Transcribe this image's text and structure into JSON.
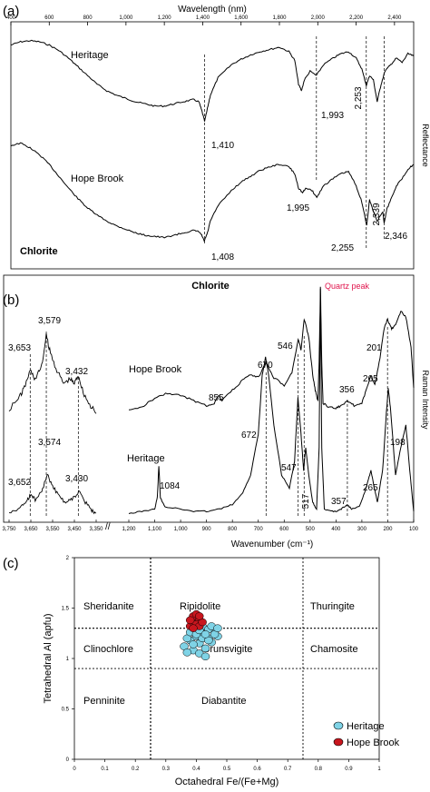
{
  "panel_a": {
    "label": "(a)",
    "title": "Wavelength (nm)",
    "x_ticks": [
      "400",
      "600",
      "800",
      "1,000",
      "1,200",
      "1,400",
      "1,600",
      "1,800",
      "2,000",
      "2,200",
      "2,400"
    ],
    "y_label": "Reflectance",
    "series_labels": {
      "heritage": "Heritage",
      "hope": "Hope Brook"
    },
    "mineral": "Chlorite",
    "annotations": [
      "1,410",
      "1,993",
      "2,253",
      "1,408",
      "1,995",
      "2,339",
      "2,255",
      "2,346"
    ]
  },
  "panel_b": {
    "label": "(b)",
    "title": "Chlorite",
    "x_label": "Wavenumber (cm⁻¹)",
    "y_label": "Raman Intensity",
    "quartz": "Quartz peak",
    "left_ticks": [
      "3,750",
      "3,650",
      "3,550",
      "3,450",
      "3,350"
    ],
    "main_ticks": [
      "1,200",
      "1,100",
      "1,000",
      "900",
      "800",
      "700",
      "600",
      "500",
      "400",
      "300",
      "200",
      "100"
    ],
    "series_labels": {
      "hope": "Hope Brook",
      "heritage": "Heritage"
    },
    "left_annotations": [
      "3,579",
      "3,653",
      "3,432",
      "3,574",
      "3,652",
      "3,430"
    ],
    "hope_annotations": [
      "523",
      "546",
      "670",
      "855",
      "356",
      "265",
      "201"
    ],
    "heritage_annotations": [
      "672",
      "547",
      "517",
      "1084",
      "357",
      "265",
      "198"
    ]
  },
  "panel_c": {
    "label": "(c)",
    "x_label": "Octahedral Fe/(Fe+Mg)",
    "y_label": "Tetrahedral Al (apfu)",
    "x_ticks": [
      "0",
      "0.1",
      "0.2",
      "0.3",
      "0.4",
      "0.5",
      "0.6",
      "0.7",
      "0.8",
      "0.9",
      "1"
    ],
    "y_ticks": [
      "0",
      "0.5",
      "1",
      "1.5",
      "2"
    ],
    "fields": [
      "Sheridanite",
      "Ripidolite",
      "Thuringite",
      "Clinochlore",
      "Brunsvigite",
      "Chamosite",
      "Penninite",
      "Diabantite"
    ],
    "legend": [
      "Heritage",
      "Hope Brook"
    ]
  },
  "colors": {
    "heritage": "#7fd3e6",
    "hope": "#c8161e",
    "quartz": "#e0144c"
  },
  "chart_data": [
    {
      "type": "line",
      "title": "",
      "xlabel": "Wavelength (nm)",
      "ylabel": "Reflectance",
      "xlim": [
        400,
        2500
      ],
      "series": [
        {
          "name": "Heritage",
          "x": [
            400,
            450,
            500,
            550,
            600,
            650,
            700,
            750,
            800,
            850,
            900,
            950,
            1000,
            1050,
            1100,
            1150,
            1200,
            1250,
            1300,
            1350,
            1380,
            1395,
            1410,
            1425,
            1440,
            1480,
            1550,
            1600,
            1650,
            1700,
            1750,
            1800,
            1850,
            1880,
            1900,
            1915,
            1930,
            1960,
            1993,
            2030,
            2080,
            2120,
            2160,
            2200,
            2230,
            2253,
            2270,
            2290,
            2310,
            2330,
            2350,
            2380,
            2410,
            2440,
            2470,
            2500
          ],
          "y": [
            0.92,
            0.95,
            0.96,
            0.95,
            0.92,
            0.87,
            0.8,
            0.72,
            0.64,
            0.56,
            0.5,
            0.46,
            0.43,
            0.4,
            0.38,
            0.36,
            0.36,
            0.38,
            0.4,
            0.42,
            0.4,
            0.32,
            0.22,
            0.34,
            0.46,
            0.62,
            0.74,
            0.79,
            0.83,
            0.86,
            0.88,
            0.9,
            0.86,
            0.78,
            0.56,
            0.5,
            0.6,
            0.68,
            0.64,
            0.74,
            0.8,
            0.84,
            0.86,
            0.8,
            0.7,
            0.55,
            0.64,
            0.6,
            0.4,
            0.56,
            0.68,
            0.74,
            0.8,
            0.76,
            0.84,
            0.82
          ]
        },
        {
          "name": "Hope Brook",
          "x": [
            400,
            450,
            500,
            550,
            600,
            650,
            700,
            750,
            800,
            850,
            900,
            950,
            1000,
            1050,
            1100,
            1150,
            1200,
            1250,
            1300,
            1350,
            1380,
            1395,
            1408,
            1425,
            1440,
            1480,
            1550,
            1600,
            1650,
            1700,
            1750,
            1800,
            1850,
            1880,
            1900,
            1920,
            1940,
            1970,
            1995,
            2030,
            2080,
            2120,
            2160,
            2200,
            2230,
            2255,
            2270,
            2290,
            2310,
            2339,
            2346,
            2360,
            2380,
            2410,
            2440,
            2470,
            2500
          ],
          "y": [
            0.86,
            0.88,
            0.84,
            0.78,
            0.7,
            0.6,
            0.5,
            0.41,
            0.33,
            0.27,
            0.22,
            0.18,
            0.15,
            0.12,
            0.1,
            0.09,
            0.08,
            0.1,
            0.12,
            0.14,
            0.13,
            0.1,
            0.05,
            0.12,
            0.22,
            0.35,
            0.48,
            0.55,
            0.6,
            0.65,
            0.68,
            0.7,
            0.68,
            0.62,
            0.5,
            0.46,
            0.5,
            0.48,
            0.42,
            0.52,
            0.58,
            0.62,
            0.64,
            0.52,
            0.38,
            0.18,
            0.4,
            0.3,
            0.22,
            0.3,
            0.2,
            0.32,
            0.4,
            0.52,
            0.58,
            0.66,
            0.7
          ]
        }
      ]
    },
    {
      "type": "line",
      "title": "Chlorite",
      "xlabel": "Wavenumber (cm⁻¹)",
      "ylabel": "Raman Intensity",
      "xlim": [
        1200,
        100
      ],
      "series": [
        {
          "name": "Hope Brook",
          "x": [
            1200,
            1150,
            1100,
            1050,
            1000,
            950,
            900,
            870,
            855,
            840,
            800,
            760,
            730,
            700,
            670,
            640,
            600,
            570,
            546,
            535,
            523,
            505,
            490,
            480,
            470,
            465,
            460,
            455,
            450,
            430,
            400,
            380,
            356,
            330,
            300,
            280,
            265,
            250,
            230,
            215,
            201,
            185,
            170,
            150,
            130,
            110,
            100
          ],
          "y": [
            0.02,
            0.05,
            0.12,
            0.16,
            0.14,
            0.1,
            0.06,
            0.08,
            0.14,
            0.1,
            0.18,
            0.26,
            0.3,
            0.28,
            0.4,
            0.28,
            0.22,
            0.32,
            0.58,
            0.5,
            0.74,
            0.6,
            0.3,
            0.18,
            0.1,
            0.4,
            1.0,
            0.4,
            0.08,
            0.05,
            0.04,
            0.06,
            0.1,
            0.06,
            0.08,
            0.2,
            0.3,
            0.22,
            0.44,
            0.66,
            0.74,
            0.66,
            0.7,
            0.8,
            0.76,
            0.52,
            0.2
          ]
        },
        {
          "name": "Heritage",
          "x": [
            1200,
            1150,
            1100,
            1090,
            1084,
            1078,
            1060,
            1000,
            950,
            900,
            850,
            800,
            760,
            730,
            700,
            685,
            672,
            660,
            640,
            610,
            580,
            560,
            547,
            535,
            525,
            517,
            505,
            490,
            475,
            465,
            460,
            455,
            445,
            420,
            400,
            380,
            357,
            340,
            310,
            290,
            275,
            265,
            255,
            240,
            220,
            205,
            198,
            190,
            170,
            150,
            130,
            115,
            100
          ],
          "y": [
            0.01,
            0.02,
            0.03,
            0.08,
            0.22,
            0.08,
            0.04,
            0.03,
            0.02,
            0.02,
            0.03,
            0.05,
            0.1,
            0.18,
            0.36,
            0.62,
            0.7,
            0.62,
            0.4,
            0.18,
            0.12,
            0.24,
            0.52,
            0.36,
            0.2,
            0.3,
            0.18,
            0.06,
            0.03,
            0.3,
            1.0,
            0.3,
            0.03,
            0.02,
            0.02,
            0.03,
            0.05,
            0.03,
            0.04,
            0.1,
            0.16,
            0.2,
            0.14,
            0.06,
            0.2,
            0.46,
            0.56,
            0.48,
            0.18,
            0.3,
            0.4,
            0.2,
            0.02
          ]
        }
      ]
    },
    {
      "type": "scatter",
      "title": "",
      "xlabel": "Octahedral Fe/(Fe+Mg)",
      "ylabel": "Tetrahedral Al (apfu)",
      "xlim": [
        0,
        1
      ],
      "ylim": [
        0,
        2
      ],
      "series": [
        {
          "name": "Heritage",
          "x": [
            0.36,
            0.38,
            0.4,
            0.42,
            0.44,
            0.46,
            0.47,
            0.37,
            0.39,
            0.41,
            0.43,
            0.45,
            0.4,
            0.42,
            0.44,
            0.38,
            0.41,
            0.43,
            0.46,
            0.39,
            0.42,
            0.45,
            0.37,
            0.4,
            0.44,
            0.47,
            0.41,
            0.43
          ],
          "y": [
            1.12,
            1.18,
            1.22,
            1.25,
            1.2,
            1.28,
            1.22,
            1.2,
            1.08,
            1.15,
            1.1,
            1.16,
            1.3,
            1.32,
            1.29,
            1.26,
            1.05,
            1.02,
            1.24,
            1.14,
            1.2,
            1.32,
            1.06,
            1.24,
            1.18,
            1.3,
            1.28,
            1.24
          ]
        },
        {
          "name": "Hope Brook",
          "x": [
            0.38,
            0.39,
            0.4,
            0.41,
            0.4,
            0.39,
            0.41,
            0.38,
            0.4,
            0.42,
            0.39,
            0.41
          ],
          "y": [
            1.32,
            1.36,
            1.4,
            1.38,
            1.34,
            1.42,
            1.32,
            1.38,
            1.44,
            1.36,
            1.3,
            1.42
          ]
        }
      ]
    }
  ]
}
